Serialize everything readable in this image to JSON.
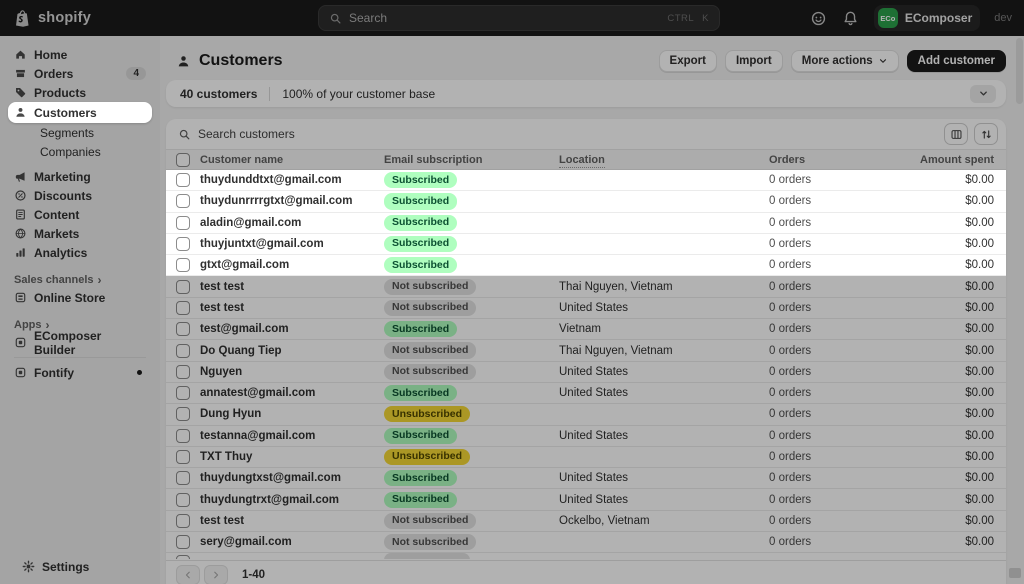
{
  "topbar": {
    "logo_text": "shopify",
    "search_placeholder": "Search",
    "shortcut_keys": [
      "CTRL",
      "K"
    ],
    "account": {
      "initials": "ECo",
      "name": "EComposer",
      "env": "dev",
      "avatar_color": "#2ba14b"
    }
  },
  "sidebar": {
    "nav": [
      {
        "type": "item",
        "label": "Home",
        "icon": "home-icon"
      },
      {
        "type": "item",
        "label": "Orders",
        "icon": "orders-icon",
        "badge": "4"
      },
      {
        "type": "item",
        "label": "Products",
        "icon": "products-icon"
      },
      {
        "type": "item",
        "label": "Customers",
        "icon": "customers-icon",
        "active": true
      },
      {
        "type": "subitem",
        "label": "Segments"
      },
      {
        "type": "subitem",
        "label": "Companies"
      },
      {
        "type": "gap"
      },
      {
        "type": "item",
        "label": "Marketing",
        "icon": "marketing-icon"
      },
      {
        "type": "item",
        "label": "Discounts",
        "icon": "discounts-icon"
      },
      {
        "type": "item",
        "label": "Content",
        "icon": "content-icon"
      },
      {
        "type": "item",
        "label": "Markets",
        "icon": "markets-icon"
      },
      {
        "type": "item",
        "label": "Analytics",
        "icon": "analytics-icon"
      },
      {
        "type": "header",
        "label": "Sales channels"
      },
      {
        "type": "item",
        "label": "Online Store",
        "icon": "online-store-icon"
      },
      {
        "type": "header",
        "label": "Apps"
      },
      {
        "type": "item",
        "label": "EComposer Builder",
        "icon": "app-icon"
      },
      {
        "type": "divider"
      },
      {
        "type": "item",
        "label": "Fontify",
        "icon": "app-icon",
        "dot": true
      }
    ],
    "settings_label": "Settings"
  },
  "header": {
    "title": "Customers",
    "export_label": "Export",
    "import_label": "Import",
    "more_actions_label": "More actions",
    "add_customer_label": "Add customer"
  },
  "summary": {
    "count": "40 customers",
    "percent": "100% of your customer base"
  },
  "table": {
    "search_placeholder": "Search customers",
    "columns": [
      "Customer name",
      "Email subscription",
      "Location",
      "Orders",
      "Amount spent"
    ],
    "rows": [
      {
        "name": "thuydunddtxt@gmail.com",
        "subscription": "Subscribed",
        "subscription_type": "subscribed",
        "location": "",
        "orders": "0 orders",
        "amount": "$0.00",
        "highlight": true
      },
      {
        "name": "thuydunrrrrgtxt@gmail.com",
        "subscription": "Subscribed",
        "subscription_type": "subscribed",
        "location": "",
        "orders": "0 orders",
        "amount": "$0.00",
        "highlight": true
      },
      {
        "name": "aladin@gmail.com",
        "subscription": "Subscribed",
        "subscription_type": "subscribed",
        "location": "",
        "orders": "0 orders",
        "amount": "$0.00",
        "highlight": true
      },
      {
        "name": "thuyjuntxt@gmail.com",
        "subscription": "Subscribed",
        "subscription_type": "subscribed",
        "location": "",
        "orders": "0 orders",
        "amount": "$0.00",
        "highlight": true
      },
      {
        "name": "gtxt@gmail.com",
        "subscription": "Subscribed",
        "subscription_type": "subscribed",
        "location": "",
        "orders": "0 orders",
        "amount": "$0.00",
        "highlight": true
      },
      {
        "name": "test test",
        "subscription": "Not subscribed",
        "subscription_type": "not_subscribed",
        "location": "Thai Nguyen, Vietnam",
        "orders": "0 orders",
        "amount": "$0.00",
        "highlight": false
      },
      {
        "name": "test test",
        "subscription": "Not subscribed",
        "subscription_type": "not_subscribed",
        "location": "United States",
        "orders": "0 orders",
        "amount": "$0.00",
        "highlight": false
      },
      {
        "name": "test@gmail.com",
        "subscription": "Subscribed",
        "subscription_type": "subscribed",
        "location": "Vietnam",
        "orders": "0 orders",
        "amount": "$0.00",
        "highlight": false
      },
      {
        "name": "Do Quang Tiep",
        "subscription": "Not subscribed",
        "subscription_type": "not_subscribed",
        "location": "Thai Nguyen, Vietnam",
        "orders": "0 orders",
        "amount": "$0.00",
        "highlight": false
      },
      {
        "name": "Nguyen",
        "subscription": "Not subscribed",
        "subscription_type": "not_subscribed",
        "location": "United States",
        "orders": "0 orders",
        "amount": "$0.00",
        "highlight": false
      },
      {
        "name": "annatest@gmail.com",
        "subscription": "Subscribed",
        "subscription_type": "subscribed",
        "location": "United States",
        "orders": "0 orders",
        "amount": "$0.00",
        "highlight": false
      },
      {
        "name": "Dung Hyun",
        "subscription": "Unsubscribed",
        "subscription_type": "unsubscribed",
        "location": "",
        "orders": "0 orders",
        "amount": "$0.00",
        "highlight": false
      },
      {
        "name": "testanna@gmail.com",
        "subscription": "Subscribed",
        "subscription_type": "subscribed",
        "location": "United States",
        "orders": "0 orders",
        "amount": "$0.00",
        "highlight": false
      },
      {
        "name": "TXT Thuy",
        "subscription": "Unsubscribed",
        "subscription_type": "unsubscribed",
        "location": "",
        "orders": "0 orders",
        "amount": "$0.00",
        "highlight": false
      },
      {
        "name": "thuydungtxst@gmail.com",
        "subscription": "Subscribed",
        "subscription_type": "subscribed",
        "location": "United States",
        "orders": "0 orders",
        "amount": "$0.00",
        "highlight": false
      },
      {
        "name": "thuydungtrxt@gmail.com",
        "subscription": "Subscribed",
        "subscription_type": "subscribed",
        "location": "United States",
        "orders": "0 orders",
        "amount": "$0.00",
        "highlight": false
      },
      {
        "name": "test test",
        "subscription": "Not subscribed",
        "subscription_type": "not_subscribed",
        "location": "Ockelbo, Vietnam",
        "orders": "0 orders",
        "amount": "$0.00",
        "highlight": false
      },
      {
        "name": "sery@gmail.com",
        "subscription": "Not subscribed",
        "subscription_type": "not_subscribed",
        "location": "",
        "orders": "0 orders",
        "amount": "$0.00",
        "highlight": false
      }
    ],
    "partial_row_visible": true
  },
  "pagination": {
    "range": "1-40"
  },
  "colors": {
    "badge_subscribed_bg": "#affebf",
    "badge_subscribed_text": "#0c5132",
    "badge_not_subscribed_bg": "#e3e3e3",
    "badge_unsubscribed_bg": "#f5d935",
    "topbar_bg": "#1b1b1b",
    "avatar_green": "#2ba14b",
    "primary_button_bg": "#1a1a1a"
  }
}
